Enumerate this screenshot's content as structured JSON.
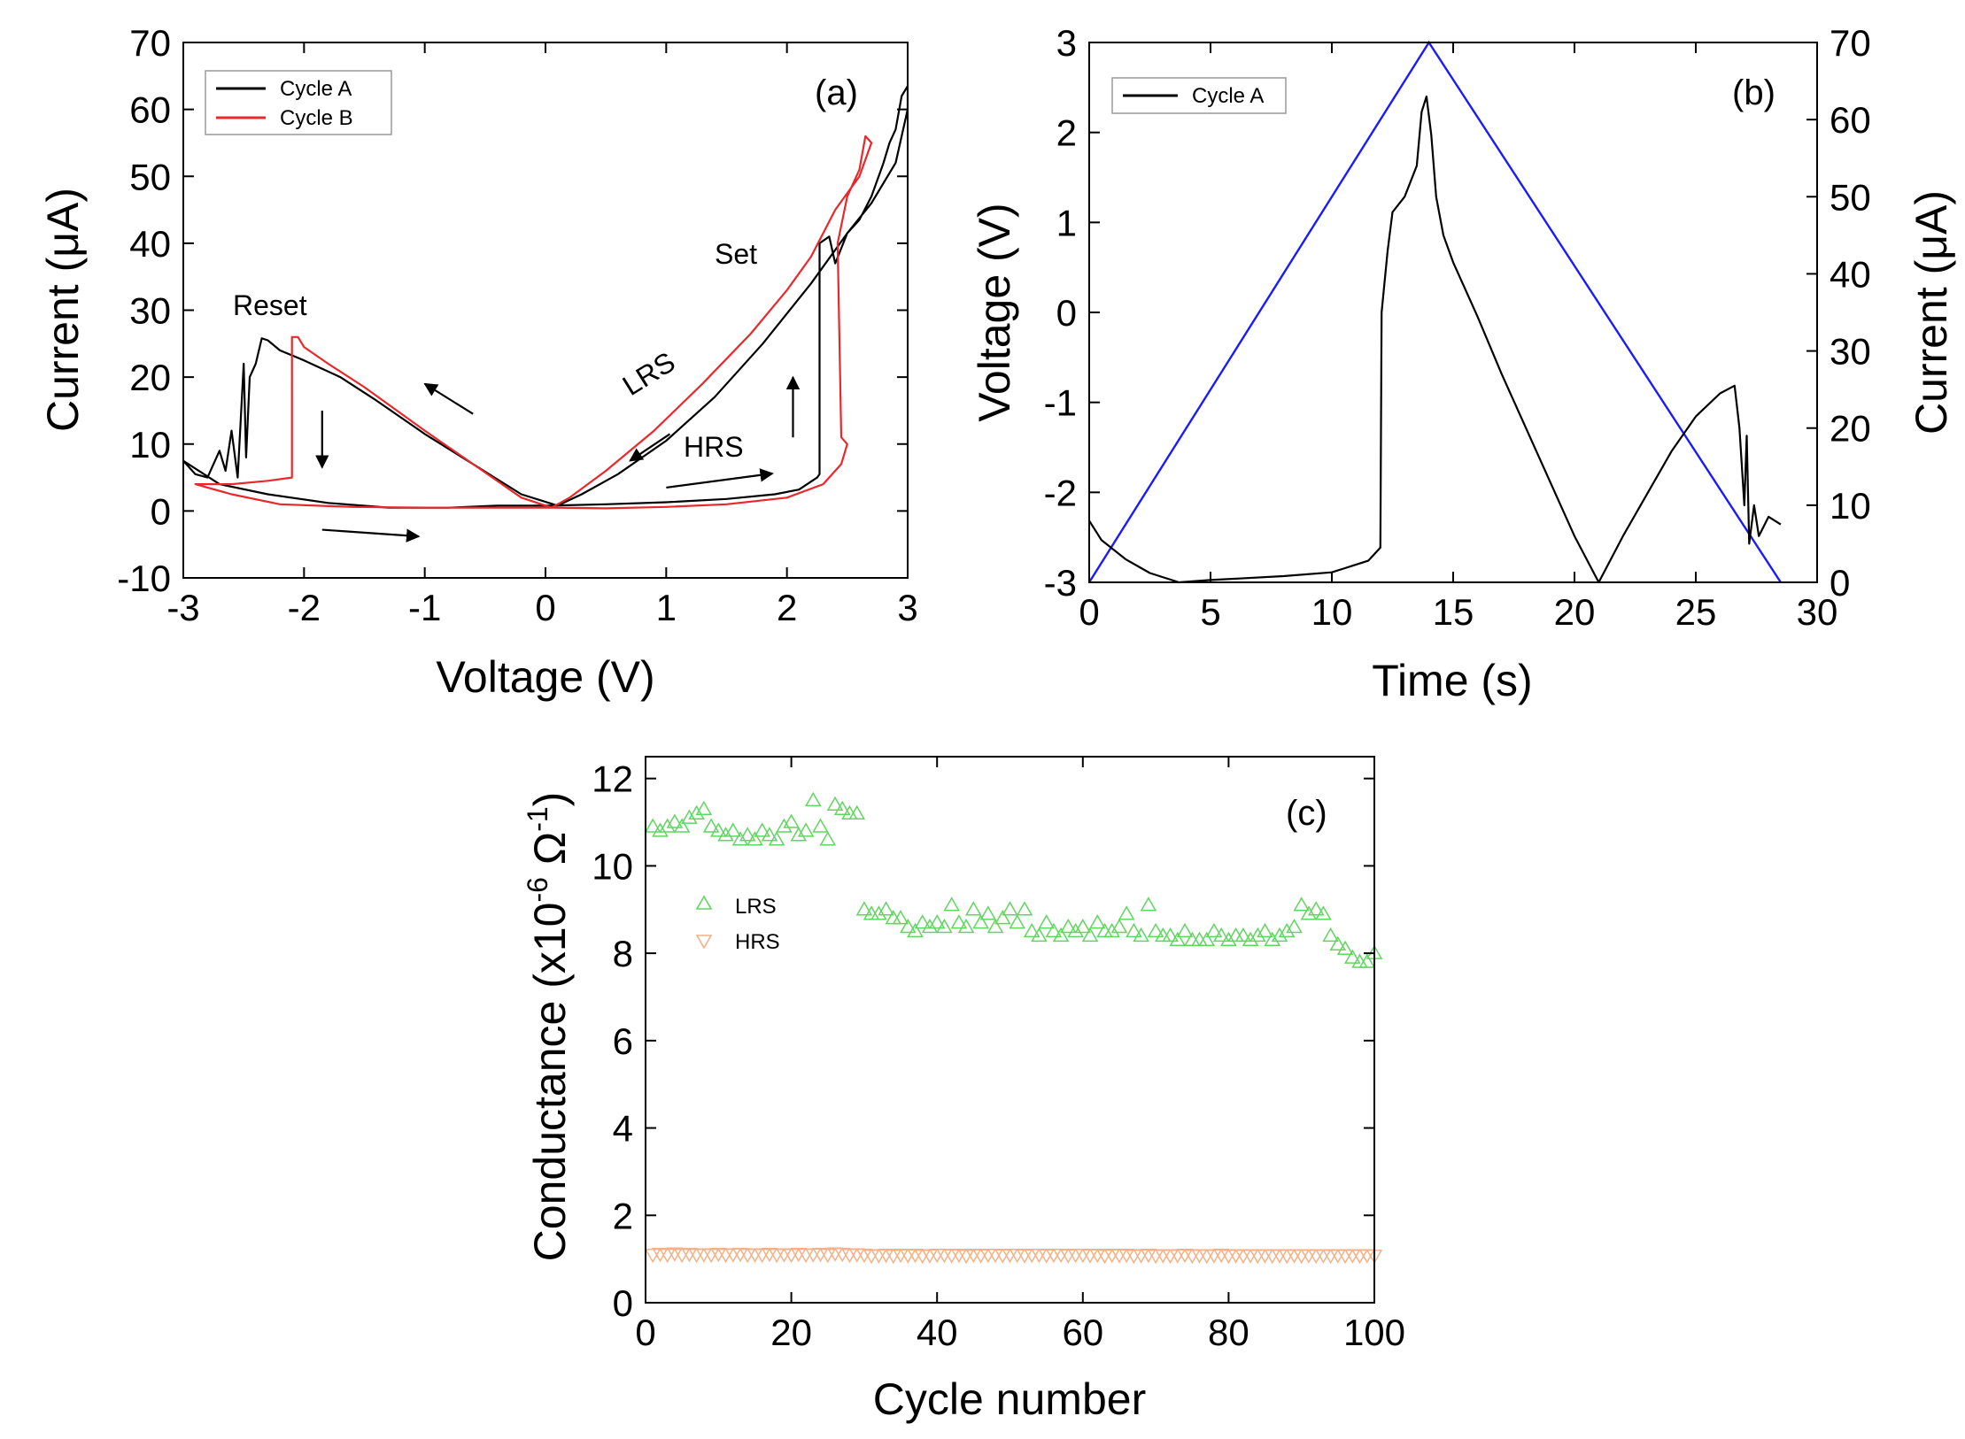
{
  "chart_data": [
    {
      "id": "a",
      "type": "line",
      "panel_label": "(a)",
      "xlabel": "Voltage (V)",
      "ylabel_pre": "Current (",
      "ylabel_mu": "μ",
      "ylabel_post": "A)",
      "xlim": [
        -3,
        3
      ],
      "ylim": [
        -10,
        70
      ],
      "xticks": [
        -3,
        -2,
        -1,
        0,
        1,
        2,
        3
      ],
      "yticks": [
        -10,
        0,
        10,
        20,
        30,
        40,
        50,
        60,
        70
      ],
      "legend": [
        {
          "name": "Cycle A",
          "color": "#000000"
        },
        {
          "name": "Cycle B",
          "color": "#e8282b"
        }
      ],
      "annotations": {
        "reset": "Reset",
        "set": "Set",
        "lrs": "LRS",
        "hrs": "HRS"
      },
      "series": [
        {
          "name": "Cycle A",
          "color": "#000000",
          "points": [
            [
              0.05,
              0.8
            ],
            [
              0.5,
              1.0
            ],
            [
              1.0,
              1.3
            ],
            [
              1.5,
              1.8
            ],
            [
              1.9,
              2.5
            ],
            [
              2.1,
              3.2
            ],
            [
              2.25,
              5.0
            ],
            [
              2.27,
              5.5
            ],
            [
              2.27,
              40.0
            ],
            [
              2.35,
              41.0
            ],
            [
              2.4,
              37.0
            ],
            [
              2.5,
              41.5
            ],
            [
              2.6,
              43.5
            ],
            [
              2.7,
              47.0
            ],
            [
              2.8,
              52.0
            ],
            [
              2.85,
              55.0
            ],
            [
              2.9,
              57.0
            ],
            [
              2.95,
              62.0
            ],
            [
              3.0,
              63.5
            ],
            [
              3.0,
              60.0
            ],
            [
              2.9,
              52.0
            ],
            [
              2.7,
              46.0
            ],
            [
              2.5,
              41.5
            ],
            [
              2.2,
              34.0
            ],
            [
              1.8,
              25.0
            ],
            [
              1.4,
              17.0
            ],
            [
              1.0,
              10.5
            ],
            [
              0.6,
              5.5
            ],
            [
              0.3,
              2.5
            ],
            [
              0.1,
              0.8
            ],
            [
              -0.2,
              2.5
            ],
            [
              -0.6,
              7.0
            ],
            [
              -1.0,
              11.5
            ],
            [
              -1.4,
              16.5
            ],
            [
              -1.7,
              20.0
            ],
            [
              -2.0,
              22.5
            ],
            [
              -2.2,
              24.0
            ],
            [
              -2.3,
              25.5
            ],
            [
              -2.35,
              25.8
            ],
            [
              -2.4,
              22.0
            ],
            [
              -2.45,
              20.0
            ],
            [
              -2.48,
              8.0
            ],
            [
              -2.5,
              22.0
            ],
            [
              -2.55,
              5.0
            ],
            [
              -2.6,
              12.0
            ],
            [
              -2.65,
              6.0
            ],
            [
              -2.7,
              9.0
            ],
            [
              -2.8,
              5.0
            ],
            [
              -2.9,
              5.5
            ],
            [
              -3.0,
              7.5
            ],
            [
              -2.7,
              4.0
            ],
            [
              -2.3,
              2.5
            ],
            [
              -1.8,
              1.2
            ],
            [
              -1.3,
              0.5
            ],
            [
              -0.8,
              0.5
            ],
            [
              -0.4,
              0.8
            ],
            [
              0.05,
              0.8
            ]
          ]
        },
        {
          "name": "Cycle B",
          "color": "#e8282b",
          "points": [
            [
              0.05,
              0.5
            ],
            [
              0.5,
              0.4
            ],
            [
              1.0,
              0.6
            ],
            [
              1.5,
              1.0
            ],
            [
              2.0,
              2.0
            ],
            [
              2.3,
              4.0
            ],
            [
              2.45,
              7.0
            ],
            [
              2.5,
              10.0
            ],
            [
              2.45,
              11.0
            ],
            [
              2.42,
              40.0
            ],
            [
              2.5,
              47.0
            ],
            [
              2.6,
              51.0
            ],
            [
              2.65,
              56.0
            ],
            [
              2.7,
              55.0
            ],
            [
              2.6,
              50.0
            ],
            [
              2.4,
              45.0
            ],
            [
              2.2,
              38.0
            ],
            [
              2.0,
              33.0
            ],
            [
              1.7,
              26.5
            ],
            [
              1.3,
              19.0
            ],
            [
              0.9,
              12.0
            ],
            [
              0.5,
              6.0
            ],
            [
              0.2,
              2.0
            ],
            [
              0.05,
              0.5
            ],
            [
              -0.2,
              2.0
            ],
            [
              -0.6,
              7.0
            ],
            [
              -1.0,
              12.0
            ],
            [
              -1.5,
              18.5
            ],
            [
              -1.8,
              22.0
            ],
            [
              -2.0,
              24.5
            ],
            [
              -2.05,
              26.0
            ],
            [
              -2.1,
              26.0
            ],
            [
              -2.1,
              5.0
            ],
            [
              -2.3,
              4.5
            ],
            [
              -2.6,
              4.0
            ],
            [
              -2.9,
              4.0
            ],
            [
              -2.6,
              2.5
            ],
            [
              -2.2,
              1.0
            ],
            [
              -1.6,
              0.6
            ],
            [
              -1.0,
              0.5
            ],
            [
              -0.5,
              0.5
            ],
            [
              0.05,
              0.5
            ]
          ]
        }
      ],
      "arrows": [
        {
          "from": [
            -0.6,
            14.5
          ],
          "to": [
            -1.0,
            19.0
          ]
        },
        {
          "from": [
            -1.85,
            15.0
          ],
          "to": [
            -1.85,
            6.5
          ]
        },
        {
          "from": [
            -1.85,
            -2.8
          ],
          "to": [
            -1.05,
            -3.8
          ]
        },
        {
          "from": [
            1.03,
            11.5
          ],
          "to": [
            0.7,
            7.5
          ]
        },
        {
          "from": [
            1.0,
            3.5
          ],
          "to": [
            1.88,
            5.6
          ]
        },
        {
          "from": [
            2.05,
            11.0
          ],
          "to": [
            2.05,
            20.0
          ]
        }
      ]
    },
    {
      "id": "b",
      "type": "line",
      "panel_label": "(b)",
      "xlabel": "Time (s)",
      "ylabel": "Voltage (V)",
      "y2label_pre": "Current (",
      "y2label_mu": "μ",
      "y2label_post": "A)",
      "xlim": [
        0,
        30
      ],
      "ylim": [
        -3,
        3
      ],
      "y2lim": [
        0,
        70
      ],
      "xticks": [
        0,
        5,
        10,
        15,
        20,
        25,
        30
      ],
      "yticks": [
        -3,
        -2,
        -1,
        0,
        1,
        2,
        3
      ],
      "y2ticks": [
        0,
        10,
        20,
        30,
        40,
        50,
        60,
        70
      ],
      "voltage_color": "#1a1aff",
      "legend": [
        {
          "name": "Cycle A",
          "color": "#000000"
        }
      ],
      "voltage_series": [
        [
          0,
          -3
        ],
        [
          14,
          3
        ],
        [
          28.5,
          -3
        ]
      ],
      "current_series": [
        [
          0.0,
          8.0
        ],
        [
          0.5,
          5.5
        ],
        [
          1.5,
          3.0
        ],
        [
          2.5,
          1.2
        ],
        [
          3.7,
          0.0
        ],
        [
          5,
          0.3
        ],
        [
          8,
          0.8
        ],
        [
          10,
          1.3
        ],
        [
          11.5,
          2.8
        ],
        [
          12.0,
          4.5
        ],
        [
          12.05,
          35.0
        ],
        [
          12.3,
          43.0
        ],
        [
          12.5,
          48.0
        ],
        [
          13.0,
          50.0
        ],
        [
          13.5,
          54.0
        ],
        [
          13.7,
          61.0
        ],
        [
          13.9,
          63.0
        ],
        [
          14.1,
          58.0
        ],
        [
          14.3,
          50.0
        ],
        [
          14.6,
          45.0
        ],
        [
          15.0,
          41.5
        ],
        [
          16.0,
          34.5
        ],
        [
          17.0,
          27.0
        ],
        [
          18.0,
          20.0
        ],
        [
          19.0,
          13.0
        ],
        [
          20.0,
          6.0
        ],
        [
          21.0,
          0.0
        ],
        [
          22.0,
          6.0
        ],
        [
          23.0,
          11.5
        ],
        [
          24.0,
          17.0
        ],
        [
          25.0,
          21.5
        ],
        [
          26.0,
          24.5
        ],
        [
          26.6,
          25.5
        ],
        [
          26.8,
          20.0
        ],
        [
          27.0,
          10.0
        ],
        [
          27.1,
          19.0
        ],
        [
          27.2,
          5.0
        ],
        [
          27.4,
          10.0
        ],
        [
          27.6,
          6.0
        ],
        [
          28.0,
          8.5
        ],
        [
          28.5,
          7.5
        ]
      ]
    },
    {
      "id": "c",
      "type": "scatter",
      "panel_label": "(c)",
      "xlabel": "Cycle number",
      "ylabel_pre": "Conductance (x10",
      "ylabel_exp1": "-6",
      "ylabel_mid": " Ω",
      "ylabel_exp2": "-1",
      "ylabel_post": ")",
      "xlim": [
        0,
        100
      ],
      "ylim": [
        0,
        12.5
      ],
      "xticks": [
        0,
        20,
        40,
        60,
        80,
        100
      ],
      "yticks": [
        0,
        2,
        4,
        6,
        8,
        10,
        12
      ],
      "legend": [
        {
          "name": "LRS",
          "color": "#5fd65f",
          "marker": "triangle-up"
        },
        {
          "name": "HRS",
          "color": "#f4b187",
          "marker": "triangle-down"
        }
      ],
      "series": [
        {
          "name": "LRS",
          "color": "#5fd65f",
          "marker": "triangle-up",
          "x": [
            1,
            2,
            3,
            4,
            5,
            6,
            7,
            8,
            9,
            10,
            11,
            12,
            13,
            14,
            15,
            16,
            17,
            18,
            19,
            20,
            21,
            22,
            23,
            24,
            25,
            26,
            27,
            28,
            29,
            30,
            31,
            32,
            33,
            34,
            35,
            36,
            37,
            38,
            39,
            40,
            41,
            42,
            43,
            44,
            45,
            46,
            47,
            48,
            49,
            50,
            51,
            52,
            53,
            54,
            55,
            56,
            57,
            58,
            59,
            60,
            61,
            62,
            63,
            64,
            65,
            66,
            67,
            68,
            69,
            70,
            71,
            72,
            73,
            74,
            75,
            76,
            77,
            78,
            79,
            80,
            81,
            82,
            83,
            84,
            85,
            86,
            87,
            88,
            89,
            90,
            91,
            92,
            93,
            94,
            95,
            96,
            97,
            98,
            99,
            100
          ],
          "y": [
            10.9,
            10.8,
            10.9,
            11.0,
            10.9,
            11.1,
            11.2,
            11.3,
            10.9,
            10.8,
            10.7,
            10.8,
            10.6,
            10.7,
            10.6,
            10.8,
            10.7,
            10.6,
            10.9,
            11.0,
            10.7,
            10.8,
            11.5,
            10.9,
            10.6,
            11.4,
            11.3,
            11.2,
            11.2,
            9.0,
            8.9,
            8.9,
            9.0,
            8.8,
            8.8,
            8.6,
            8.5,
            8.7,
            8.6,
            8.7,
            8.6,
            9.1,
            8.7,
            8.6,
            9.0,
            8.7,
            8.9,
            8.6,
            8.8,
            9.0,
            8.7,
            9.0,
            8.5,
            8.4,
            8.7,
            8.5,
            8.4,
            8.6,
            8.5,
            8.6,
            8.4,
            8.7,
            8.5,
            8.5,
            8.6,
            8.9,
            8.5,
            8.4,
            9.1,
            8.5,
            8.4,
            8.4,
            8.3,
            8.5,
            8.3,
            8.3,
            8.3,
            8.5,
            8.4,
            8.3,
            8.4,
            8.4,
            8.3,
            8.4,
            8.5,
            8.3,
            8.4,
            8.5,
            8.6,
            9.1,
            8.9,
            9.0,
            8.9,
            8.4,
            8.2,
            8.1,
            7.9,
            7.8,
            7.8,
            8.0
          ]
        },
        {
          "name": "HRS",
          "color": "#f4b187",
          "marker": "triangle-down",
          "x": [
            1,
            2,
            3,
            4,
            5,
            6,
            7,
            8,
            9,
            10,
            11,
            12,
            13,
            14,
            15,
            16,
            17,
            18,
            19,
            20,
            21,
            22,
            23,
            24,
            25,
            26,
            27,
            28,
            29,
            30,
            31,
            32,
            33,
            34,
            35,
            36,
            37,
            38,
            39,
            40,
            41,
            42,
            43,
            44,
            45,
            46,
            47,
            48,
            49,
            50,
            51,
            52,
            53,
            54,
            55,
            56,
            57,
            58,
            59,
            60,
            61,
            62,
            63,
            64,
            65,
            66,
            67,
            68,
            69,
            70,
            71,
            72,
            73,
            74,
            75,
            76,
            77,
            78,
            79,
            80,
            81,
            82,
            83,
            84,
            85,
            86,
            87,
            88,
            89,
            90,
            91,
            92,
            93,
            94,
            95,
            96,
            97,
            98,
            99,
            100
          ],
          "y": [
            1.1,
            1.12,
            1.1,
            1.13,
            1.1,
            1.12,
            1.1,
            1.11,
            1.1,
            1.12,
            1.1,
            1.11,
            1.12,
            1.1,
            1.11,
            1.1,
            1.12,
            1.1,
            1.11,
            1.1,
            1.12,
            1.1,
            1.11,
            1.12,
            1.1,
            1.13,
            1.12,
            1.1,
            1.11,
            1.1,
            1.08,
            1.09,
            1.1,
            1.08,
            1.1,
            1.09,
            1.1,
            1.08,
            1.09,
            1.1,
            1.1,
            1.09,
            1.1,
            1.08,
            1.1,
            1.09,
            1.1,
            1.1,
            1.09,
            1.1,
            1.1,
            1.09,
            1.1,
            1.1,
            1.09,
            1.1,
            1.1,
            1.09,
            1.1,
            1.1,
            1.09,
            1.1,
            1.08,
            1.1,
            1.09,
            1.1,
            1.08,
            1.09,
            1.1,
            1.08,
            1.09,
            1.08,
            1.09,
            1.1,
            1.08,
            1.09,
            1.08,
            1.09,
            1.1,
            1.08,
            1.09,
            1.08,
            1.09,
            1.08,
            1.09,
            1.08,
            1.09,
            1.08,
            1.09,
            1.08,
            1.09,
            1.08,
            1.09,
            1.08,
            1.09,
            1.08,
            1.09,
            1.08,
            1.09,
            1.08
          ]
        }
      ]
    }
  ]
}
